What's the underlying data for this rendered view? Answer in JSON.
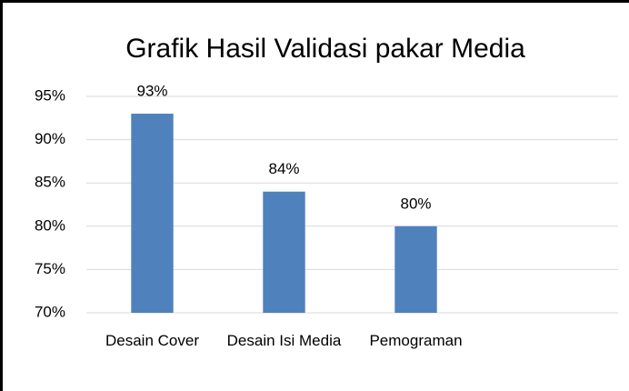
{
  "chart_data": {
    "type": "bar",
    "title": "Grafik Hasil Validasi pakar Media",
    "categories": [
      "Desain Cover",
      "Desain Isi Media",
      "Pemograman",
      null
    ],
    "values": [
      93,
      84,
      80,
      null
    ],
    "value_labels": [
      "93%",
      "84%",
      "80%",
      null
    ],
    "color": "#4f81bd",
    "ylim": [
      70,
      95
    ],
    "yticks": [
      {
        "value": 70,
        "label": "70%"
      },
      {
        "value": 75,
        "label": "75%"
      },
      {
        "value": 80,
        "label": "80%"
      },
      {
        "value": 85,
        "label": "85%"
      },
      {
        "value": 90,
        "label": "90%"
      },
      {
        "value": 95,
        "label": "95%"
      }
    ],
    "grid": true
  }
}
